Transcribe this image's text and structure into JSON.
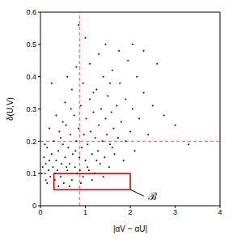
{
  "chart_data": {
    "type": "scatter",
    "x_label": "|αV − αU|",
    "y_label": "δ(U,V)",
    "xlim": [
      0,
      4
    ],
    "xticks": [
      0,
      1,
      2,
      3,
      4
    ],
    "ylim": [
      0,
      0.6
    ],
    "yticks": [
      0,
      0.1,
      0.2,
      0.3,
      0.4,
      0.5,
      0.6
    ],
    "color": "#000000",
    "marker": "dot",
    "vlines": [
      0.87
    ],
    "hlines": [
      0.2
    ],
    "line_color": "#e06060",
    "box": {
      "x": [
        0.3,
        2.0
      ],
      "y": [
        0.05,
        0.1
      ],
      "label": "ℬ",
      "label_at": [
        2.3,
        0.03
      ],
      "color": "#e00000"
    },
    "x": [
      0.05,
      0.08,
      0.1,
      0.12,
      0.15,
      0.18,
      0.2,
      0.22,
      0.25,
      0.28,
      0.3,
      0.32,
      0.35,
      0.38,
      0.4,
      0.42,
      0.45,
      0.47,
      0.5,
      0.52,
      0.55,
      0.57,
      0.6,
      0.62,
      0.65,
      0.67,
      0.7,
      0.72,
      0.75,
      0.77,
      0.8,
      0.82,
      0.85,
      0.87,
      0.9,
      0.92,
      0.95,
      0.97,
      1.0,
      1.02,
      1.05,
      1.08,
      1.1,
      1.12,
      1.15,
      1.18,
      1.2,
      1.22,
      1.25,
      1.28,
      1.3,
      1.33,
      1.35,
      1.38,
      1.4,
      1.43,
      1.45,
      1.48,
      1.5,
      1.53,
      1.55,
      1.58,
      1.6,
      1.63,
      1.65,
      1.7,
      1.73,
      1.77,
      1.8,
      1.85,
      1.9,
      1.95,
      2.0,
      2.05,
      2.1,
      2.15,
      2.2,
      2.3,
      2.4,
      2.5,
      2.6,
      2.75,
      3.0,
      3.3,
      2.05,
      1.75,
      1.3,
      1.1,
      0.95,
      0.7,
      0.55,
      0.35,
      0.2,
      0.15,
      0.4,
      0.65,
      0.9,
      1.15,
      0.25,
      0.6,
      0.8,
      1.0,
      1.45,
      0.1,
      0.45,
      0.78,
      1.05,
      0.33,
      0.58,
      0.88,
      1.25,
      1.6,
      1.4,
      0.12,
      0.03,
      0.5,
      0.68,
      1.18,
      1.9,
      2.3,
      0.85,
      1.55
    ],
    "values": [
      0.12,
      0.15,
      0.1,
      0.13,
      0.18,
      0.11,
      0.14,
      0.09,
      0.16,
      0.12,
      0.2,
      0.08,
      0.14,
      0.11,
      0.17,
      0.23,
      0.09,
      0.13,
      0.19,
      0.07,
      0.15,
      0.25,
      0.11,
      0.18,
      0.13,
      0.22,
      0.08,
      0.16,
      0.28,
      0.12,
      0.2,
      0.1,
      0.24,
      0.15,
      0.31,
      0.18,
      0.09,
      0.22,
      0.14,
      0.27,
      0.19,
      0.11,
      0.33,
      0.23,
      0.16,
      0.29,
      0.1,
      0.21,
      0.36,
      0.17,
      0.25,
      0.13,
      0.3,
      0.2,
      0.4,
      0.15,
      0.27,
      0.22,
      0.34,
      0.12,
      0.19,
      0.29,
      0.42,
      0.24,
      0.16,
      0.31,
      0.21,
      0.38,
      0.26,
      0.14,
      0.33,
      0.45,
      0.23,
      0.3,
      0.17,
      0.4,
      0.27,
      0.35,
      0.22,
      0.31,
      0.44,
      0.28,
      0.25,
      0.19,
      0.5,
      0.48,
      0.47,
      0.44,
      0.38,
      0.36,
      0.32,
      0.28,
      0.24,
      0.07,
      0.06,
      0.06,
      0.07,
      0.08,
      0.38,
      0.4,
      0.43,
      0.52,
      0.5,
      0.19,
      0.21,
      0.17,
      0.12,
      0.1,
      0.12,
      0.11,
      0.14,
      0.18,
      0.09,
      0.08,
      0.1,
      0.26,
      0.3,
      0.35,
      0.2,
      0.48,
      0.56,
      0.38
    ]
  }
}
